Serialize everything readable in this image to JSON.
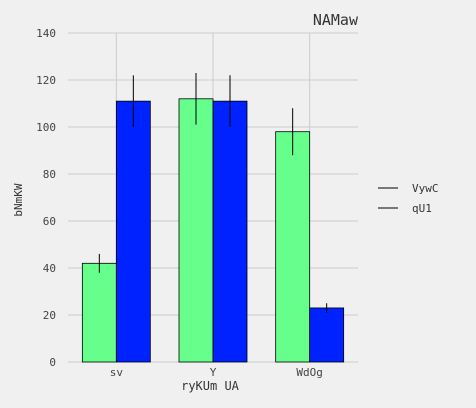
{
  "chart_data": {
    "type": "bar",
    "title": "NAMaw",
    "xlabel": "ryKUm UA",
    "ylabel": "bNmKW",
    "categories": [
      "sv",
      "Y",
      "WdOg"
    ],
    "series": [
      {
        "name": "VywC",
        "values": [
          42,
          112,
          98
        ],
        "errors": [
          4,
          11,
          10
        ],
        "color": "#66ff8c"
      },
      {
        "name": "qU1",
        "values": [
          111,
          111,
          23
        ],
        "errors": [
          11,
          11,
          2
        ],
        "color": "#0022ff"
      }
    ],
    "ylim": [
      0,
      140
    ],
    "yticks": [
      "0",
      "20",
      "40",
      "60",
      "80",
      "100",
      "120",
      "140"
    ],
    "grid": true,
    "legend_position": "right"
  }
}
